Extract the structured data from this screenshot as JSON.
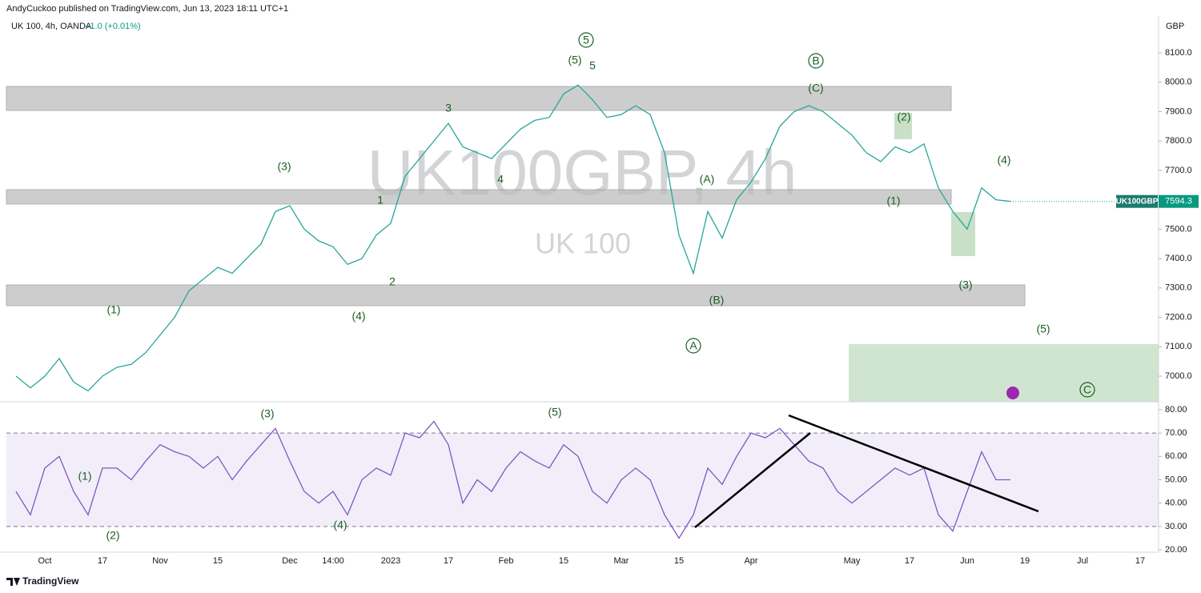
{
  "header": {
    "publisher": "AndyCuckoo published on TradingView.com, Jun 13, 2023 18:11 UTC+1",
    "symbol": "UK 100, 4h, OANDA",
    "change": "+1.0 (+0.01%)",
    "currency": "GBP",
    "watermark": "UK100GBP, 4h",
    "watermark_name": "UK 100",
    "price_tag_name": "UK100GBP",
    "footer": "TradingView"
  },
  "chart_data": [
    {
      "type": "line",
      "color": "#26a69a",
      "values": [
        7000,
        6960,
        7000,
        7060,
        6980,
        6950,
        7000,
        7030,
        7040,
        7080,
        7140,
        7200,
        7290,
        7330,
        7370,
        7350,
        7400,
        7450,
        7560,
        7580,
        7500,
        7460,
        7440,
        7380,
        7400,
        7480,
        7520,
        7680,
        7740,
        7800,
        7860,
        7780,
        7760,
        7740,
        7790,
        7840,
        7870,
        7880,
        7960,
        7990,
        7940,
        7880,
        7890,
        7920,
        7890,
        7760,
        7480,
        7350,
        7560,
        7470,
        7600,
        7660,
        7740,
        7850,
        7900,
        7920,
        7900,
        7860,
        7820,
        7760,
        7730,
        7780,
        7760,
        7790,
        7640,
        7560,
        7500,
        7640,
        7600,
        7594.3,
        null,
        null,
        null,
        null,
        null,
        null,
        null,
        null,
        null,
        null
      ],
      "ylim": [
        6913,
        8225
      ],
      "yticks": [
        {
          "value": 7000,
          "label": "7000.0"
        },
        {
          "value": 7100,
          "label": "7100.0"
        },
        {
          "value": 7200,
          "label": "7200.0"
        },
        {
          "value": 7300,
          "label": "7300.0"
        },
        {
          "value": 7400,
          "label": "7400.0"
        },
        {
          "value": 7500,
          "label": "7500.0"
        },
        {
          "value": 7600,
          "label": "7600.0"
        },
        {
          "value": 7700,
          "label": "7700.0"
        },
        {
          "value": 7800,
          "label": "7800.0"
        },
        {
          "value": 7900,
          "label": "7900.0"
        },
        {
          "value": 8000,
          "label": "8000.0"
        },
        {
          "value": 8100,
          "label": "8100.0"
        }
      ],
      "annotations": [
        "5",
        "(5)",
        "5",
        "B",
        "(C)",
        "3",
        "(2)",
        "(3)",
        "4",
        "(A)",
        "(4)",
        "1",
        "(1)",
        "2",
        "(1)",
        "(4)",
        "(B)",
        "(3)",
        "(5)",
        "A",
        "C"
      ]
    },
    {
      "type": "line",
      "color": "#7e57c2",
      "categories": [
        null,
        null,
        "Oct",
        null,
        null,
        null,
        "17",
        null,
        null,
        null,
        "Nov",
        null,
        null,
        null,
        "15",
        null,
        null,
        null,
        null,
        "Dec",
        null,
        null,
        "14:00",
        null,
        null,
        null,
        "2023",
        null,
        null,
        null,
        "17",
        null,
        null,
        null,
        "Feb",
        null,
        null,
        null,
        "15",
        null,
        null,
        null,
        "Mar",
        null,
        null,
        null,
        "15",
        null,
        null,
        null,
        null,
        "Apr",
        null,
        null,
        null,
        null,
        null,
        null,
        "May",
        null,
        null,
        null,
        "17",
        null,
        null,
        null,
        "Jun",
        null,
        null,
        null,
        "19",
        null,
        null,
        null,
        "Jul",
        null,
        null,
        null,
        "17",
        null
      ],
      "values": [
        45,
        35,
        55,
        60,
        45,
        35,
        55,
        55,
        50,
        58,
        65,
        62,
        60,
        55,
        60,
        50,
        58,
        65,
        72,
        58,
        45,
        40,
        45,
        35,
        50,
        55,
        52,
        70,
        68,
        75,
        65,
        40,
        50,
        45,
        55,
        62,
        58,
        55,
        65,
        60,
        45,
        40,
        50,
        55,
        50,
        35,
        25,
        35,
        55,
        48,
        60,
        70,
        68,
        72,
        65,
        58,
        55,
        45,
        40,
        45,
        50,
        55,
        52,
        55,
        35,
        28,
        45,
        62,
        50,
        50,
        null,
        null,
        null,
        null,
        null,
        null,
        null,
        null,
        null,
        null
      ],
      "ylim": [
        19,
        83.4
      ],
      "yticks": [
        {
          "value": 20,
          "label": "20.00"
        },
        {
          "value": 30,
          "label": "30.00"
        },
        {
          "value": 40,
          "label": "40.00"
        },
        {
          "value": 50,
          "label": "50.00"
        },
        {
          "value": 60,
          "label": "60.00"
        },
        {
          "value": 70,
          "label": "70.00"
        },
        {
          "value": 80,
          "label": "80.00"
        }
      ],
      "band": [
        30,
        70
      ],
      "annotations": [
        "(3)",
        "(5)",
        "(1)",
        "(2)",
        "(4)"
      ]
    }
  ]
}
